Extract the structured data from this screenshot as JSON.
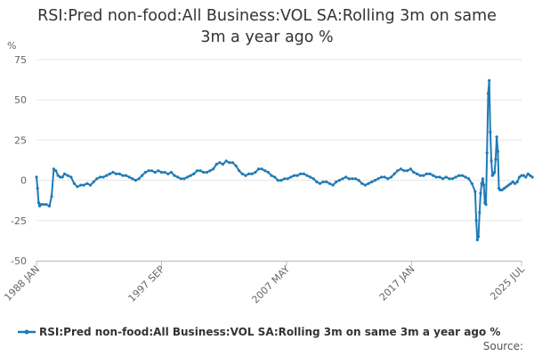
{
  "chart_data": {
    "type": "line",
    "title": "RSI:Pred non-food:All Business:VOL SA:Rolling 3m on same 3m a year ago %",
    "title_lines": [
      "RSI:Pred non-food:All Business:VOL SA:Rolling 3m on same",
      "3m a year ago %"
    ],
    "ylabel": "%",
    "xlabel": "",
    "ylim": [
      -50,
      75
    ],
    "y_ticks": [
      -50,
      -25,
      0,
      25,
      50,
      75
    ],
    "x_range": [
      "1988-01",
      "2025-07"
    ],
    "x_ticks": [
      {
        "date": "1988-01",
        "label": "1988 JAN"
      },
      {
        "date": "1997-09",
        "label": "1997 SEP"
      },
      {
        "date": "2007-05",
        "label": "2007 MAY"
      },
      {
        "date": "2017-01",
        "label": "2017 JAN"
      },
      {
        "date": "2025-07",
        "label": "2025 JUL"
      }
    ],
    "grid": "horizontal",
    "legend_position": "bottom",
    "color": "#1f7bb6",
    "series": [
      {
        "name": "RSI:Pred non-food:All Business:VOL SA:Rolling 3m on same 3m a year ago %",
        "points": [
          [
            "1988-01",
            2
          ],
          [
            "1988-02",
            -5
          ],
          [
            "1988-03",
            -14
          ],
          [
            "1988-04",
            -16
          ],
          [
            "1988-05",
            -15
          ],
          [
            "1988-07",
            -15
          ],
          [
            "1988-10",
            -15
          ],
          [
            "1989-01",
            -16
          ],
          [
            "1989-03",
            -10
          ],
          [
            "1989-05",
            7
          ],
          [
            "1989-07",
            6
          ],
          [
            "1989-09",
            3
          ],
          [
            "1989-11",
            2
          ],
          [
            "1990-01",
            2
          ],
          [
            "1990-03",
            4
          ],
          [
            "1990-06",
            3
          ],
          [
            "1990-09",
            2
          ],
          [
            "1990-12",
            -2
          ],
          [
            "1991-03",
            -4
          ],
          [
            "1991-06",
            -3
          ],
          [
            "1991-09",
            -3
          ],
          [
            "1991-12",
            -2
          ],
          [
            "1992-03",
            -3
          ],
          [
            "1992-06",
            -1
          ],
          [
            "1992-09",
            1
          ],
          [
            "1992-12",
            2
          ],
          [
            "1993-03",
            2
          ],
          [
            "1993-06",
            3
          ],
          [
            "1993-09",
            4
          ],
          [
            "1993-12",
            5
          ],
          [
            "1994-03",
            4
          ],
          [
            "1994-06",
            4
          ],
          [
            "1994-09",
            3
          ],
          [
            "1994-12",
            3
          ],
          [
            "1995-03",
            2
          ],
          [
            "1995-06",
            1
          ],
          [
            "1995-09",
            0
          ],
          [
            "1995-12",
            1
          ],
          [
            "1996-03",
            3
          ],
          [
            "1996-06",
            5
          ],
          [
            "1996-09",
            6
          ],
          [
            "1996-12",
            6
          ],
          [
            "1997-03",
            5
          ],
          [
            "1997-06",
            6
          ],
          [
            "1997-09",
            5
          ],
          [
            "1997-12",
            5
          ],
          [
            "1998-03",
            4
          ],
          [
            "1998-06",
            5
          ],
          [
            "1998-09",
            3
          ],
          [
            "1998-12",
            2
          ],
          [
            "1999-03",
            1
          ],
          [
            "1999-06",
            1
          ],
          [
            "1999-09",
            2
          ],
          [
            "1999-12",
            3
          ],
          [
            "2000-03",
            4
          ],
          [
            "2000-06",
            6
          ],
          [
            "2000-09",
            6
          ],
          [
            "2000-12",
            5
          ],
          [
            "2001-03",
            5
          ],
          [
            "2001-06",
            6
          ],
          [
            "2001-09",
            7
          ],
          [
            "2001-12",
            10
          ],
          [
            "2002-03",
            11
          ],
          [
            "2002-06",
            10
          ],
          [
            "2002-09",
            12
          ],
          [
            "2002-12",
            11
          ],
          [
            "2003-03",
            11
          ],
          [
            "2003-06",
            9
          ],
          [
            "2003-09",
            6
          ],
          [
            "2003-12",
            4
          ],
          [
            "2004-03",
            3
          ],
          [
            "2004-06",
            4
          ],
          [
            "2004-09",
            4
          ],
          [
            "2004-12",
            5
          ],
          [
            "2005-03",
            7
          ],
          [
            "2005-06",
            7
          ],
          [
            "2005-09",
            6
          ],
          [
            "2005-12",
            5
          ],
          [
            "2006-03",
            3
          ],
          [
            "2006-06",
            2
          ],
          [
            "2006-09",
            0
          ],
          [
            "2006-12",
            0
          ],
          [
            "2007-03",
            1
          ],
          [
            "2007-06",
            1
          ],
          [
            "2007-09",
            2
          ],
          [
            "2007-12",
            3
          ],
          [
            "2008-03",
            3
          ],
          [
            "2008-06",
            4
          ],
          [
            "2008-09",
            4
          ],
          [
            "2008-12",
            3
          ],
          [
            "2009-03",
            2
          ],
          [
            "2009-06",
            1
          ],
          [
            "2009-09",
            -1
          ],
          [
            "2009-12",
            -2
          ],
          [
            "2010-03",
            -1
          ],
          [
            "2010-06",
            -1
          ],
          [
            "2010-09",
            -2
          ],
          [
            "2010-12",
            -3
          ],
          [
            "2011-03",
            -1
          ],
          [
            "2011-06",
            0
          ],
          [
            "2011-09",
            1
          ],
          [
            "2011-12",
            2
          ],
          [
            "2012-03",
            1
          ],
          [
            "2012-06",
            1
          ],
          [
            "2012-09",
            1
          ],
          [
            "2012-12",
            0
          ],
          [
            "2013-03",
            -2
          ],
          [
            "2013-06",
            -3
          ],
          [
            "2013-09",
            -2
          ],
          [
            "2013-12",
            -1
          ],
          [
            "2014-03",
            0
          ],
          [
            "2014-06",
            1
          ],
          [
            "2014-09",
            2
          ],
          [
            "2014-12",
            2
          ],
          [
            "2015-03",
            1
          ],
          [
            "2015-06",
            2
          ],
          [
            "2015-09",
            4
          ],
          [
            "2015-12",
            6
          ],
          [
            "2016-03",
            7
          ],
          [
            "2016-06",
            6
          ],
          [
            "2016-09",
            6
          ],
          [
            "2016-12",
            7
          ],
          [
            "2017-03",
            5
          ],
          [
            "2017-06",
            4
          ],
          [
            "2017-09",
            3
          ],
          [
            "2017-12",
            3
          ],
          [
            "2018-03",
            4
          ],
          [
            "2018-06",
            4
          ],
          [
            "2018-09",
            3
          ],
          [
            "2018-12",
            2
          ],
          [
            "2019-03",
            2
          ],
          [
            "2019-06",
            1
          ],
          [
            "2019-09",
            2
          ],
          [
            "2019-12",
            1
          ],
          [
            "2020-03",
            1
          ],
          [
            "2020-06",
            2
          ],
          [
            "2020-09",
            3
          ],
          [
            "2020-12",
            3
          ],
          [
            "2021-03",
            2
          ],
          [
            "2021-06",
            1
          ],
          [
            "2021-09",
            -2
          ],
          [
            "2021-12",
            -7
          ],
          [
            "2022-01",
            -25
          ],
          [
            "2022-02",
            -37
          ],
          [
            "2022-03",
            -35
          ],
          [
            "2022-04",
            -20
          ],
          [
            "2022-05",
            -8
          ],
          [
            "2022-06",
            -2
          ],
          [
            "2022-07",
            1
          ],
          [
            "2022-08",
            -3
          ],
          [
            "2022-09",
            -14
          ],
          [
            "2022-10",
            -15
          ],
          [
            "2022-11",
            17
          ],
          [
            "2022-12",
            54
          ],
          [
            "2023-01",
            62
          ],
          [
            "2023-02",
            30
          ],
          [
            "2023-03",
            12
          ],
          [
            "2023-04",
            3
          ],
          [
            "2023-05",
            4
          ],
          [
            "2023-06",
            5
          ],
          [
            "2023-07",
            13
          ],
          [
            "2023-08",
            27
          ],
          [
            "2023-09",
            18
          ],
          [
            "2023-10",
            -5
          ],
          [
            "2023-11",
            -6
          ],
          [
            "2024-01",
            -6
          ],
          [
            "2024-03",
            -5
          ],
          [
            "2024-05",
            -4
          ],
          [
            "2024-07",
            -3
          ],
          [
            "2024-09",
            -2
          ],
          [
            "2024-11",
            -1
          ],
          [
            "2025-01",
            -2
          ],
          [
            "2025-03",
            -1
          ],
          [
            "2025-05",
            2
          ],
          [
            "2025-07",
            3
          ],
          [
            "2025-09",
            3
          ],
          [
            "2025-11",
            2
          ],
          [
            "2026-01",
            4
          ],
          [
            "2026-03",
            3
          ],
          [
            "2026-05",
            2
          ]
        ]
      }
    ],
    "source_label": "Source:"
  }
}
